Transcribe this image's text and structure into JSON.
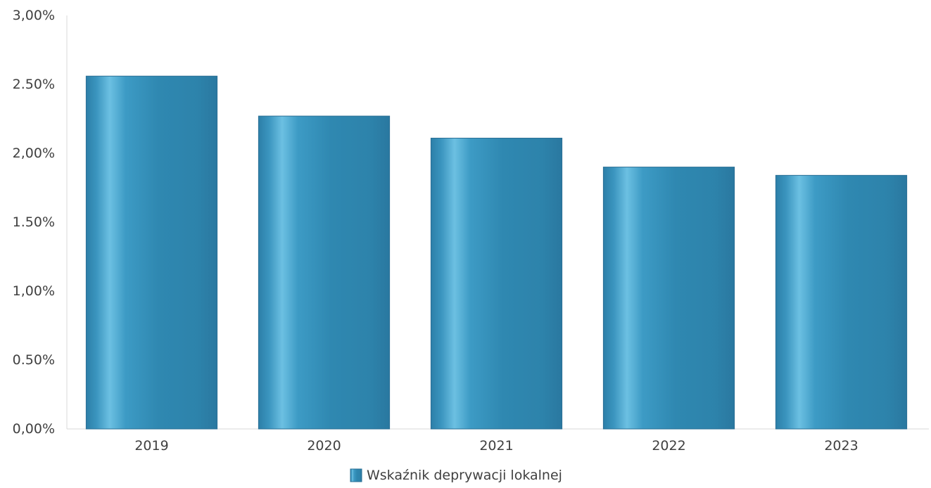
{
  "chart_data": {
    "type": "bar",
    "title": "",
    "xlabel": "",
    "ylabel": "",
    "categories": [
      "2019",
      "2020",
      "2021",
      "2022",
      "2023"
    ],
    "series": [
      {
        "name": "Wskaźnik deprywacji lokalnej",
        "values": [
          2.56,
          2.27,
          2.11,
          1.9,
          1.84
        ]
      }
    ],
    "ylim": [
      0,
      3
    ],
    "y_ticks": [
      0,
      0.5,
      1,
      1.5,
      2,
      2.5,
      3
    ],
    "y_tick_labels": [
      "0,00%",
      "0.50%",
      "1,00%",
      "1.50%",
      "2,00%",
      "2.50%",
      "3,00%"
    ],
    "grid": false,
    "legend_position": "bottom",
    "colors": {
      "bar_base": "#2d85ad",
      "bar_highlight": "#5fb6da",
      "bar_edge": "#2a6f95",
      "axis": "#d9d9d9",
      "text": "#404040"
    }
  }
}
